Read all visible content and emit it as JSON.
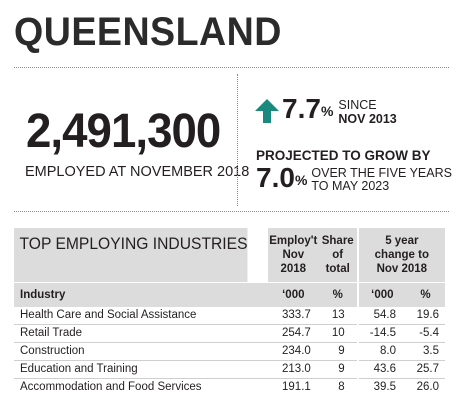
{
  "header": {
    "title": "QUEENSLAND"
  },
  "employment": {
    "number": "2,491,300",
    "caption": "EMPLOYED AT NOVEMBER 2018"
  },
  "growth": {
    "percent": "7.7",
    "percent_sign": "%",
    "since_line1": "SINCE",
    "since_line2": "NOV 2013",
    "arrow_color": "#1a8a7e",
    "arrow_icon": "arrow-up-icon"
  },
  "projection": {
    "label": "PROJECTED TO GROW BY",
    "percent": "7.0",
    "percent_sign": "%",
    "text_line1": "OVER THE FIVE YEARS",
    "text_line2": "TO MAY 2023"
  },
  "table": {
    "title": "TOP EMPLOYING INDUSTRIES",
    "col_employ": [
      "Employ't",
      "Nov",
      "2018"
    ],
    "col_share": [
      "Share",
      "of",
      "total"
    ],
    "col_change": [
      "5 year",
      "change to",
      "Nov 2018"
    ],
    "sub_industry": "Industry",
    "sub_employ": "‘000",
    "sub_share": "%",
    "sub_change_k": "‘000",
    "sub_change_pct": "%",
    "rows": [
      {
        "industry": "Health Care and Social Assistance",
        "employ": "333.7",
        "share": "13",
        "change_k": "54.8",
        "change_pct": "19.6"
      },
      {
        "industry": "Retail Trade",
        "employ": "254.7",
        "share": "10",
        "change_k": "-14.5",
        "change_pct": "-5.4"
      },
      {
        "industry": "Construction",
        "employ": "234.0",
        "share": "9",
        "change_k": "8.0",
        "change_pct": "3.5"
      },
      {
        "industry": "Education and Training",
        "employ": "213.0",
        "share": "9",
        "change_k": "43.6",
        "change_pct": "25.7"
      },
      {
        "industry": "Accommodation and Food Services",
        "employ": "191.1",
        "share": "8",
        "change_k": "39.5",
        "change_pct": "26.0"
      }
    ]
  }
}
